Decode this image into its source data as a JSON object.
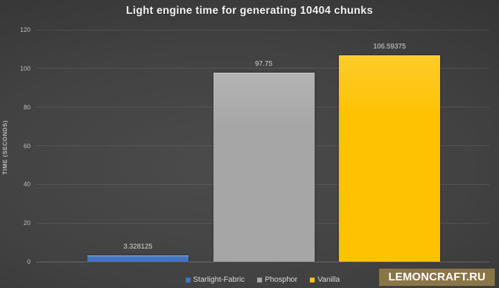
{
  "watermark": {
    "text": "LEMONCRAFT.RU",
    "bg": "#8a7548",
    "fg": "#ffffff"
  },
  "chart_data": {
    "type": "bar",
    "title": "Light engine time for generating 10404 chunks",
    "ylabel": "TIME (SECONDS)",
    "xlabel": "",
    "categories": [
      "Starlight-Fabric",
      "Phosphor",
      "Vanilla"
    ],
    "values": [
      3.328125,
      97.75,
      106.59375
    ],
    "value_labels": [
      "3.328125",
      "97.75",
      "106.59375"
    ],
    "colors": [
      "#4472c4",
      "#a6a6a6",
      "#fec202"
    ],
    "ylim": [
      0,
      120
    ],
    "yticks": [
      0,
      20,
      40,
      60,
      80,
      100,
      120
    ],
    "grid": true,
    "legend_position": "bottom",
    "background": "dark-gradient",
    "text_color": "#d9d9d9"
  }
}
